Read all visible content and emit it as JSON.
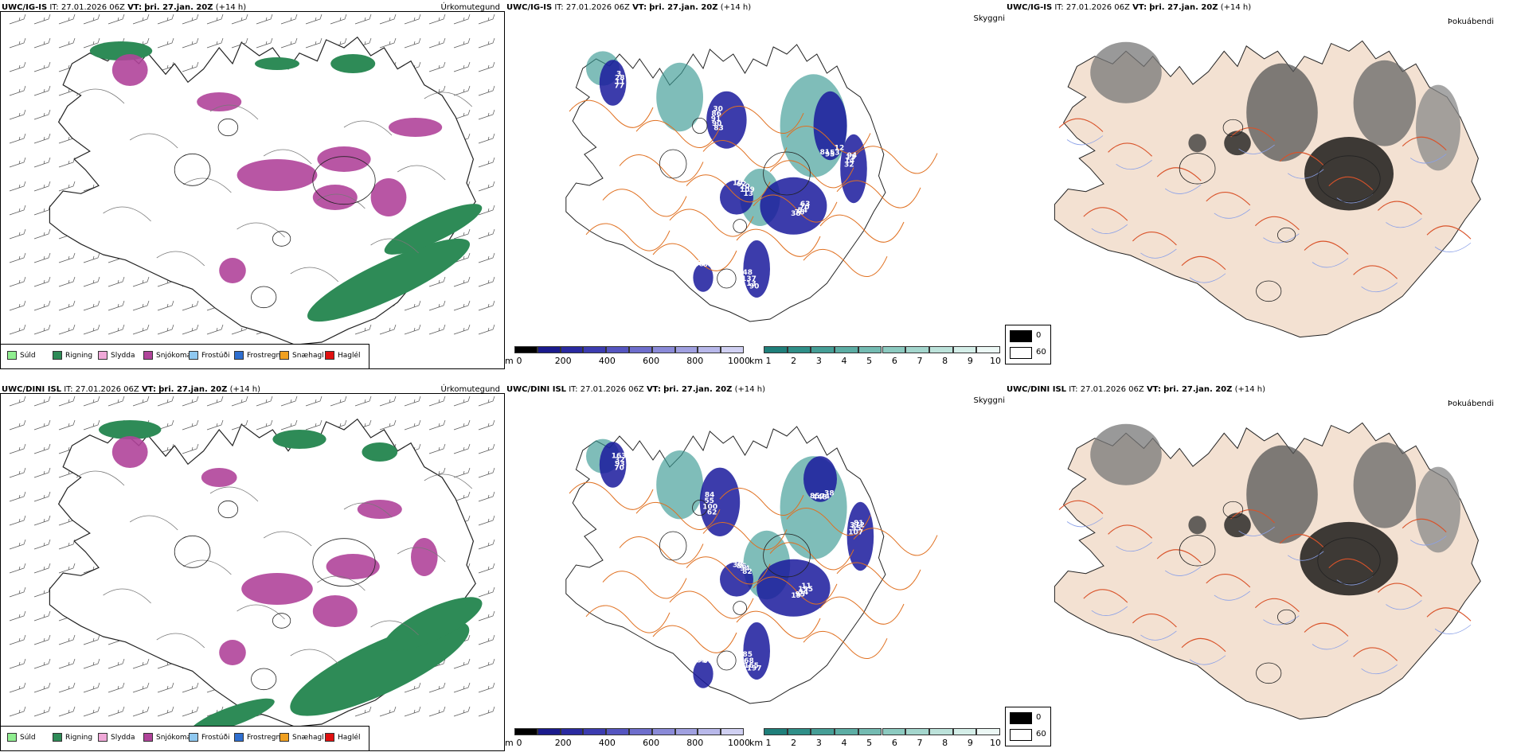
{
  "rows": [
    {
      "id": "igis",
      "panels": [
        {
          "model": "UWC/IG-IS",
          "it_label": "IT:",
          "it": "27.01.2026 06Z",
          "vt_label": "VT:",
          "vt": "þri. 27.jan. 20Z",
          "lead": "(+14 h)",
          "ptype": "Úrkomutegund"
        },
        {
          "model": "UWC/IG-IS",
          "it_label": "IT:",
          "it": "27.01.2026 06Z",
          "vt_label": "VT:",
          "vt": "þri. 27.jan. 20Z",
          "lead": "(+14 h)",
          "ptype": "Skyggni"
        },
        {
          "model": "UWC/IG-IS",
          "it_label": "IT:",
          "it": "27.01.2026 06Z",
          "vt_label": "VT:",
          "vt": "þri. 27.jan. 20Z",
          "lead": "(+14 h)",
          "ptype": "Þokuábendi"
        }
      ],
      "ceiling_labels": [
        "63",
        "83",
        "10",
        "12",
        "32",
        "3",
        "90",
        "68",
        "70",
        "90",
        "62",
        "53",
        "14",
        "28",
        "13",
        "80",
        "54",
        "91",
        "20",
        "95",
        "13",
        "11",
        "137",
        "84",
        "76",
        "86",
        "109",
        "81",
        "94",
        "77",
        "48",
        "68",
        "38",
        "30",
        "13"
      ]
    },
    {
      "id": "dini",
      "panels": [
        {
          "model": "UWC/DINI ISL",
          "it_label": "IT:",
          "it": "27.01.2026 06Z",
          "vt_label": "VT:",
          "vt": "þri. 27.jan. 20Z",
          "lead": "(+14 h)",
          "ptype": "Úrkomutegund"
        },
        {
          "model": "UWC/DINI ISL",
          "it_label": "IT:",
          "it": "27.01.2026 06Z",
          "vt_label": "VT:",
          "vt": "þri. 27.jan. 20Z",
          "lead": "(+14 h)",
          "ptype": "Skyggni"
        },
        {
          "model": "UWC/DINI ISL",
          "it_label": "IT:",
          "it": "27.01.2026 06Z",
          "vt_label": "VT:",
          "vt": "þri. 27.jan. 20Z",
          "lead": "(+14 h)",
          "ptype": "Þokuábendi"
        }
      ],
      "ceiling_labels": [
        "11",
        "62",
        "30",
        "38",
        "107",
        "163",
        "197",
        "133",
        "195",
        "100",
        "86",
        "74",
        "95",
        "32",
        "165",
        "46",
        "54",
        "55",
        "94",
        "448",
        "372",
        "93",
        "68",
        "77",
        "95",
        "84",
        "82",
        "85",
        "81",
        "70",
        "85",
        "67",
        "19"
      ]
    }
  ],
  "precip_legend": [
    {
      "label": "Súld",
      "color": "#90ee90"
    },
    {
      "label": "Rigning",
      "color": "#2e8b57"
    },
    {
      "label": "Slydda",
      "color": "#f0a8d8"
    },
    {
      "label": "Snjókoma",
      "color": "#b0449a"
    },
    {
      "label": "Frostúði",
      "color": "#8fc8f0"
    },
    {
      "label": "Frostregn",
      "color": "#2f6fd0"
    },
    {
      "label": "Snæhagl",
      "color": "#f0a020"
    },
    {
      "label": "Haglél",
      "color": "#e01010"
    }
  ],
  "ceiling_bar": {
    "unit": "m",
    "ticks": [
      "0",
      "200",
      "400",
      "600",
      "800",
      "1000"
    ],
    "colors": [
      "#000000",
      "#1a1a8c",
      "#2a2aa0",
      "#3c3cb0",
      "#5555c0",
      "#6e6ecc",
      "#8a8ad8",
      "#a0a0e0",
      "#b8b8ea",
      "#d0d0f2"
    ]
  },
  "vis_bar": {
    "unit": "km",
    "ticks": [
      "1",
      "2",
      "3",
      "4",
      "5",
      "6",
      "7",
      "8",
      "9",
      "10"
    ],
    "colors": [
      "#1f7f7a",
      "#2f8f88",
      "#459e96",
      "#5cada4",
      "#74bbb2",
      "#8ccac0",
      "#a4d6cd",
      "#bce2da",
      "#d4eee8",
      "#ecf8f5"
    ]
  },
  "fog_legend": {
    "low_label": "0",
    "high_label": "60",
    "low_color": "#000000",
    "high_color": "#ffffff"
  },
  "colors": {
    "land_fog": "#f3e1d2",
    "roads": "#e07020",
    "coast": "#222222",
    "rain": "#2e8b57",
    "snow": "#b0449a",
    "ceiling": "#1a1a9c",
    "vis": "#3a9a94"
  }
}
